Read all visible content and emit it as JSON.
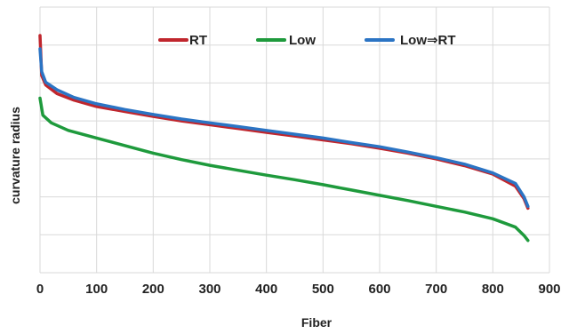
{
  "chart_data": {
    "type": "line",
    "title": "",
    "xlabel": "Fiber",
    "ylabel": "curvature radius",
    "xlim": [
      0,
      900
    ],
    "x_ticks": [
      "0",
      "100",
      "200",
      "300",
      "400",
      "500",
      "600",
      "700",
      "800",
      "900"
    ],
    "ylim": [
      0,
      7
    ],
    "y_gridlines": [
      1,
      2,
      3,
      4,
      5,
      6,
      7
    ],
    "grid": "horizontal and vertical",
    "legend_position": "top",
    "series": [
      {
        "name": "RT",
        "color": "#c0262d",
        "points": [
          [
            0,
            6.25
          ],
          [
            3,
            5.2
          ],
          [
            10,
            4.95
          ],
          [
            30,
            4.72
          ],
          [
            60,
            4.55
          ],
          [
            100,
            4.38
          ],
          [
            150,
            4.25
          ],
          [
            200,
            4.12
          ],
          [
            250,
            4.0
          ],
          [
            300,
            3.9
          ],
          [
            350,
            3.8
          ],
          [
            400,
            3.7
          ],
          [
            450,
            3.6
          ],
          [
            500,
            3.5
          ],
          [
            550,
            3.4
          ],
          [
            600,
            3.28
          ],
          [
            650,
            3.15
          ],
          [
            700,
            3.0
          ],
          [
            750,
            2.82
          ],
          [
            800,
            2.6
          ],
          [
            840,
            2.28
          ],
          [
            855,
            1.95
          ],
          [
            862,
            1.7
          ]
        ]
      },
      {
        "name": "Low",
        "color": "#1e9a3c",
        "points": [
          [
            0,
            4.6
          ],
          [
            5,
            4.15
          ],
          [
            20,
            3.95
          ],
          [
            50,
            3.75
          ],
          [
            100,
            3.55
          ],
          [
            150,
            3.35
          ],
          [
            200,
            3.15
          ],
          [
            250,
            2.98
          ],
          [
            300,
            2.83
          ],
          [
            350,
            2.7
          ],
          [
            400,
            2.57
          ],
          [
            450,
            2.45
          ],
          [
            500,
            2.32
          ],
          [
            550,
            2.18
          ],
          [
            600,
            2.04
          ],
          [
            650,
            1.9
          ],
          [
            700,
            1.75
          ],
          [
            750,
            1.6
          ],
          [
            800,
            1.42
          ],
          [
            840,
            1.2
          ],
          [
            855,
            0.98
          ],
          [
            862,
            0.85
          ]
        ]
      },
      {
        "name": "Low⇒RT",
        "color": "#2b74c4",
        "points": [
          [
            0,
            5.9
          ],
          [
            3,
            5.3
          ],
          [
            10,
            5.02
          ],
          [
            30,
            4.82
          ],
          [
            60,
            4.62
          ],
          [
            100,
            4.45
          ],
          [
            150,
            4.3
          ],
          [
            200,
            4.17
          ],
          [
            250,
            4.05
          ],
          [
            300,
            3.95
          ],
          [
            350,
            3.85
          ],
          [
            400,
            3.75
          ],
          [
            450,
            3.65
          ],
          [
            500,
            3.55
          ],
          [
            550,
            3.43
          ],
          [
            600,
            3.32
          ],
          [
            650,
            3.18
          ],
          [
            700,
            3.03
          ],
          [
            750,
            2.86
          ],
          [
            800,
            2.63
          ],
          [
            840,
            2.35
          ],
          [
            855,
            2.0
          ],
          [
            862,
            1.75
          ]
        ]
      }
    ]
  }
}
